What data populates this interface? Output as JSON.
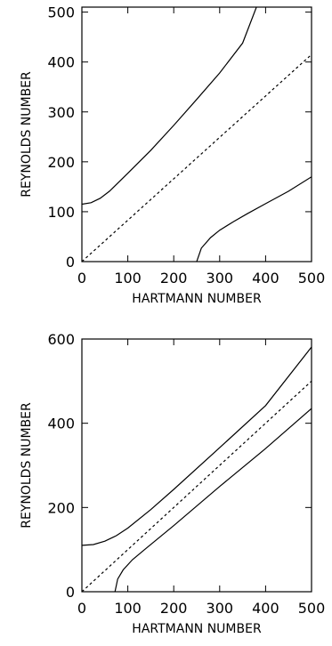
{
  "chart_data": [
    {
      "type": "line",
      "xlabel": "HARTMANN NUMBER",
      "ylabel": "REYNOLDS NUMBER",
      "xlim": [
        0,
        500
      ],
      "ylim": [
        0,
        510
      ],
      "xticks": [
        0,
        100,
        200,
        300,
        400,
        500
      ],
      "yticks": [
        0,
        100,
        200,
        300,
        400,
        500
      ],
      "grid": false,
      "series": [
        {
          "style": "solid",
          "x": [
            0,
            20,
            40,
            60,
            100,
            150,
            200,
            250,
            300,
            350,
            380
          ],
          "y": [
            115,
            118,
            127,
            141,
            177,
            223,
            273,
            325,
            378,
            438,
            510
          ]
        },
        {
          "style": "dashed",
          "x": [
            0,
            500
          ],
          "y": [
            0,
            415
          ]
        },
        {
          "style": "solid",
          "x": [
            250,
            260,
            280,
            300,
            330,
            360,
            400,
            450,
            500
          ],
          "y": [
            0,
            27,
            48,
            63,
            80,
            96,
            116,
            141,
            170
          ]
        }
      ]
    },
    {
      "type": "line",
      "xlabel": "HARTMANN NUMBER",
      "ylabel": "REYNOLDS NUMBER",
      "xlim": [
        0,
        500
      ],
      "ylim": [
        0,
        600
      ],
      "xticks": [
        0,
        100,
        200,
        300,
        400,
        500
      ],
      "yticks": [
        0,
        200,
        400,
        600
      ],
      "grid": false,
      "series": [
        {
          "style": "solid",
          "x": [
            0,
            25,
            50,
            75,
            100,
            150,
            200,
            300,
            400,
            500
          ],
          "y": [
            110,
            112,
            120,
            133,
            151,
            195,
            243,
            342,
            442,
            581
          ]
        },
        {
          "style": "dashed",
          "x": [
            0,
            500
          ],
          "y": [
            0,
            500
          ]
        },
        {
          "style": "solid",
          "x": [
            72,
            78,
            90,
            110,
            140,
            200,
            300,
            400,
            500
          ],
          "y": [
            0,
            30,
            52,
            76,
            103,
            157,
            250,
            340,
            435
          ]
        }
      ]
    }
  ]
}
